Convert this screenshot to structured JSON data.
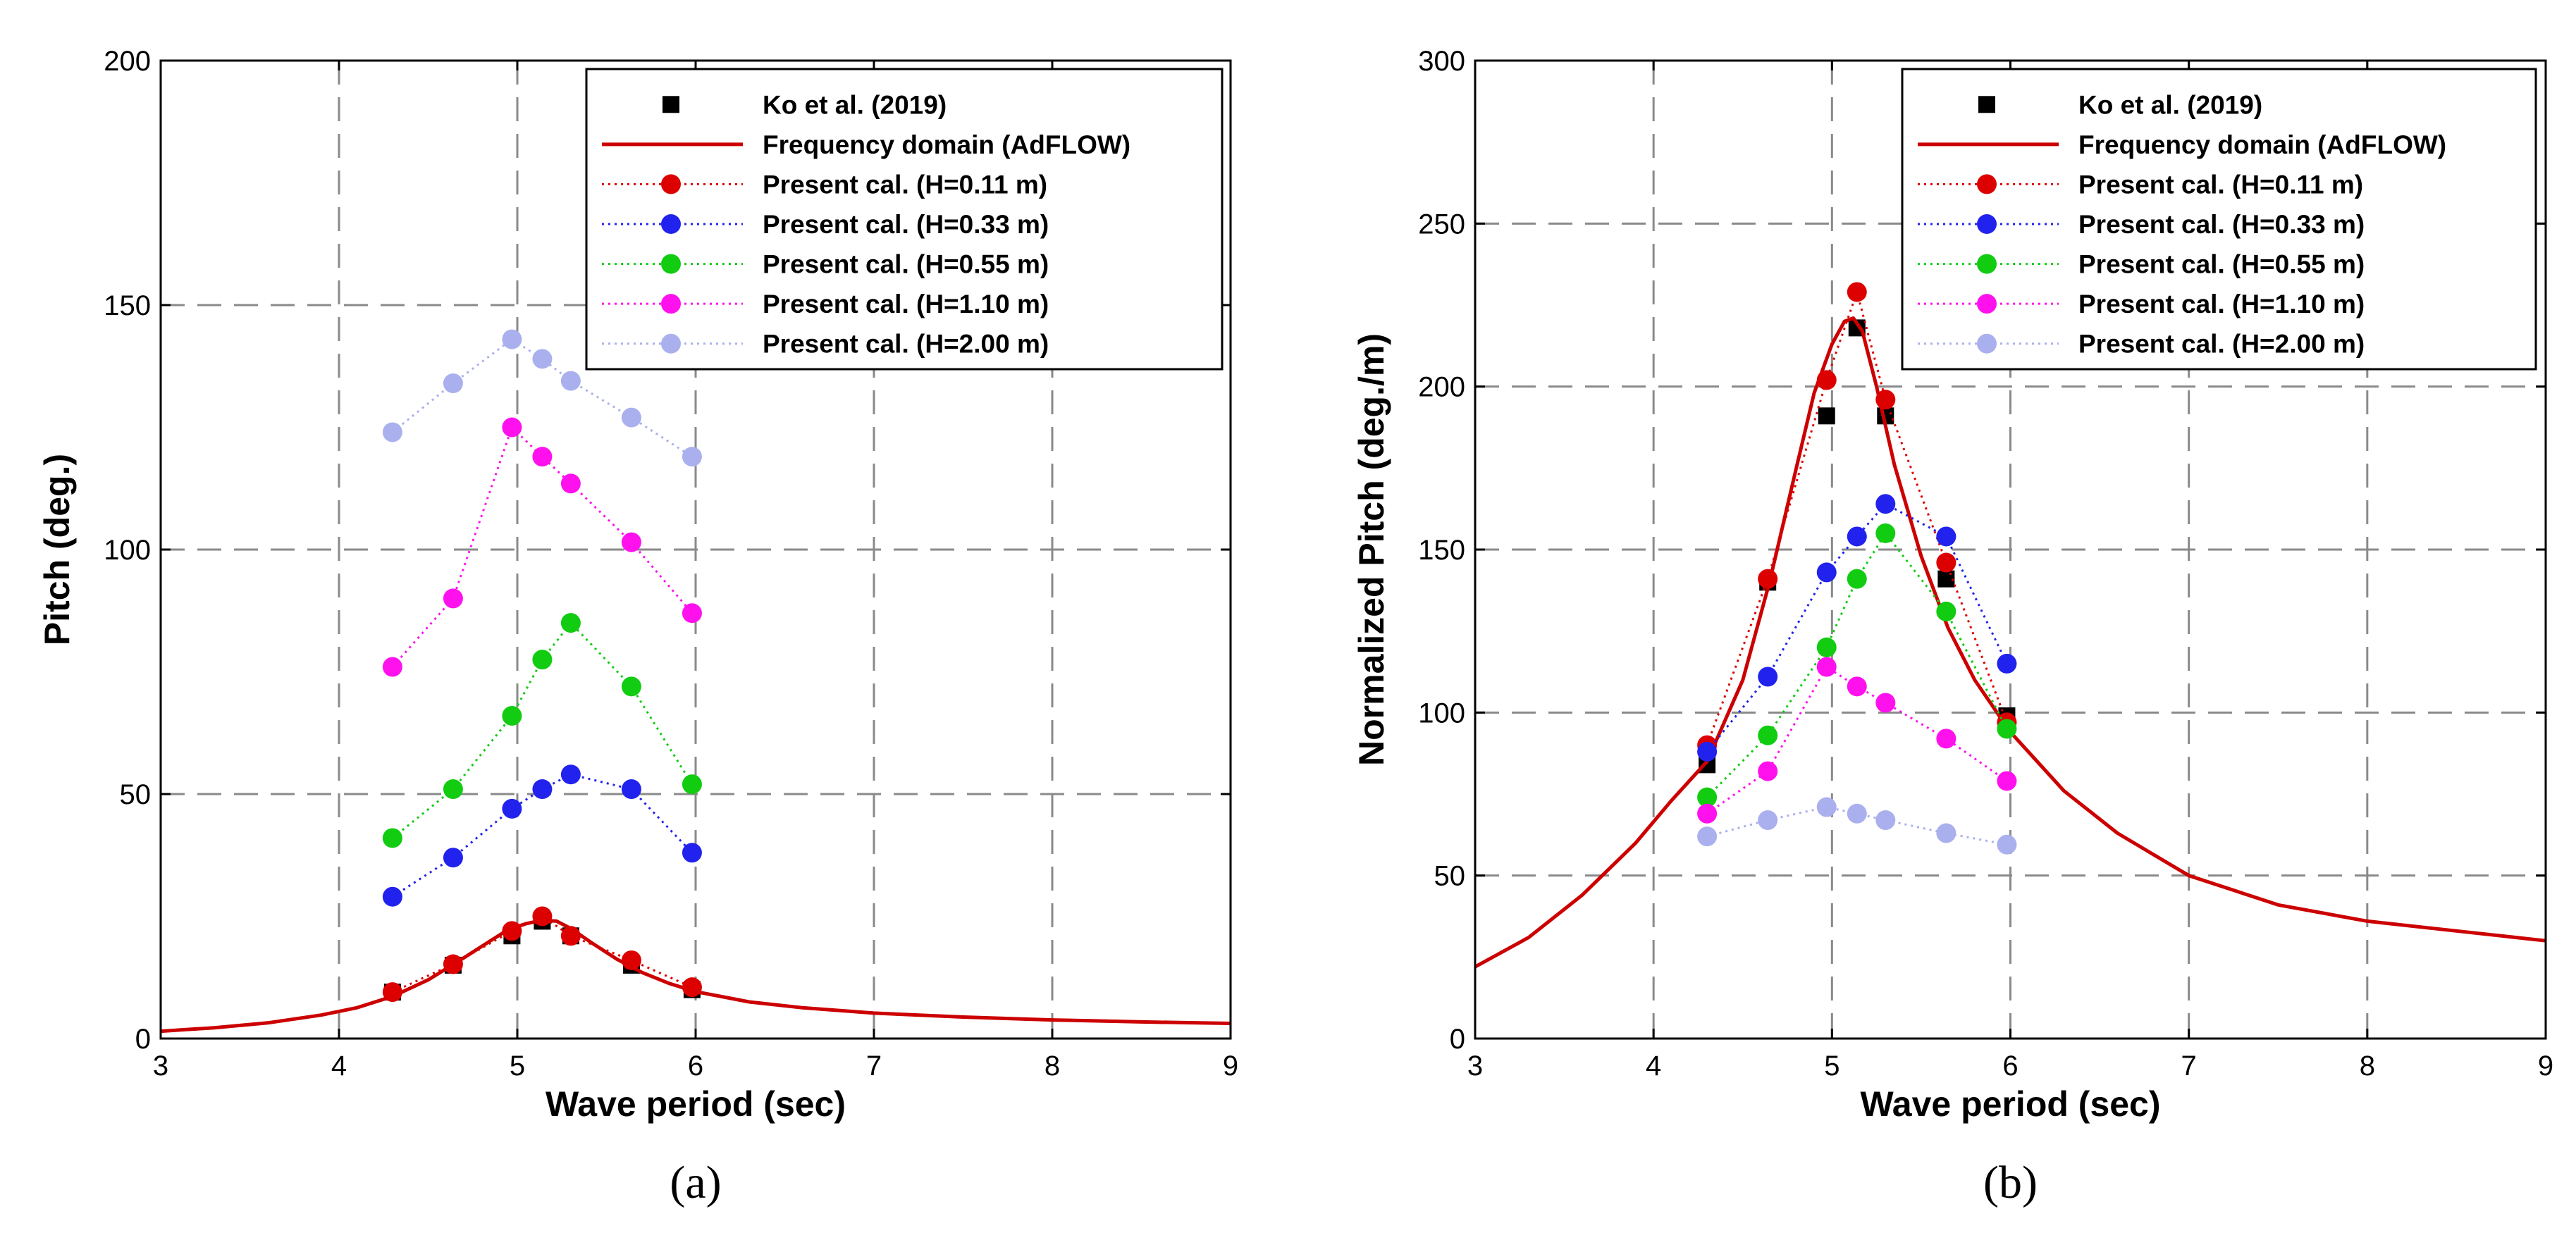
{
  "chart_data": [
    {
      "type": "line",
      "panel_label": "(a)",
      "xlabel": "Wave period (sec)",
      "ylabel": "Pitch (deg.)",
      "xlim": [
        3,
        9
      ],
      "ylim": [
        0,
        200
      ],
      "xticks": [
        3,
        4,
        5,
        6,
        7,
        8,
        9
      ],
      "yticks": [
        0,
        50,
        100,
        150,
        200
      ],
      "grid": true,
      "legend_position": "top-right",
      "series": [
        {
          "name": "Ko et al. (2019)",
          "kind": "marker-square",
          "color": "#000000",
          "x": [
            4.3,
            4.64,
            4.97,
            5.14,
            5.3,
            5.64,
            5.98
          ],
          "y": [
            9.5,
            15,
            21,
            24,
            21,
            15,
            10
          ]
        },
        {
          "name": "Frequency domain (AdFLOW)",
          "kind": "line",
          "color": "#cc0000",
          "x": [
            3,
            3.3,
            3.6,
            3.9,
            4.1,
            4.3,
            4.5,
            4.7,
            4.85,
            4.95,
            5.05,
            5.14,
            5.22,
            5.3,
            5.42,
            5.56,
            5.7,
            5.85,
            6.0,
            6.3,
            6.6,
            7.0,
            7.5,
            8.0,
            8.5,
            9.0
          ],
          "y": [
            1.5,
            2.2,
            3.2,
            4.8,
            6.3,
            8.6,
            12,
            16.5,
            20,
            22.3,
            23.5,
            24.2,
            24,
            22.5,
            19.5,
            16.2,
            13.5,
            11.3,
            9.6,
            7.5,
            6.3,
            5.2,
            4.4,
            3.8,
            3.4,
            3.1
          ]
        },
        {
          "name": "Present cal. (H=0.11 m)",
          "kind": "marker-dotted",
          "color": "#dd0000",
          "x": [
            4.3,
            4.64,
            4.97,
            5.14,
            5.3,
            5.64,
            5.98
          ],
          "y": [
            9.5,
            15.2,
            22,
            25,
            21,
            16,
            10.5
          ]
        },
        {
          "name": "Present cal. (H=0.33 m)",
          "kind": "marker-dotted",
          "color": "#2222ee",
          "x": [
            4.3,
            4.64,
            4.97,
            5.14,
            5.3,
            5.64,
            5.98
          ],
          "y": [
            29,
            37,
            47,
            51,
            54,
            51,
            38
          ]
        },
        {
          "name": "Present cal. (H=0.55 m)",
          "kind": "marker-dotted",
          "color": "#11cc11",
          "x": [
            4.3,
            4.64,
            4.97,
            5.14,
            5.3,
            5.64,
            5.98
          ],
          "y": [
            41,
            51,
            66,
            77.5,
            85,
            72,
            52
          ]
        },
        {
          "name": "Present cal. (H=1.10 m)",
          "kind": "marker-dotted",
          "color": "#ff11ee",
          "x": [
            4.3,
            4.64,
            4.97,
            5.14,
            5.3,
            5.64,
            5.98
          ],
          "y": [
            76,
            90,
            125,
            119,
            113.5,
            101.5,
            87
          ]
        },
        {
          "name": "Present cal. (H=2.00 m)",
          "kind": "marker-dotted",
          "color": "#aab0ee",
          "x": [
            4.3,
            4.64,
            4.97,
            5.14,
            5.3,
            5.64,
            5.98
          ],
          "y": [
            124,
            134,
            143,
            139,
            134.5,
            127,
            119
          ]
        }
      ]
    },
    {
      "type": "line",
      "panel_label": "(b)",
      "xlabel": "Wave period (sec)",
      "ylabel": "Normalized Pitch (deg./m)",
      "xlim": [
        3,
        9
      ],
      "ylim": [
        0,
        300
      ],
      "xticks": [
        3,
        4,
        5,
        6,
        7,
        8,
        9
      ],
      "yticks": [
        0,
        50,
        100,
        150,
        200,
        250,
        300
      ],
      "grid": true,
      "legend_position": "top-right",
      "series": [
        {
          "name": "Ko et al. (2019)",
          "kind": "marker-square",
          "color": "#000000",
          "x": [
            4.3,
            4.64,
            4.97,
            5.14,
            5.3,
            5.64,
            5.98
          ],
          "y": [
            84,
            140,
            191,
            218,
            191,
            141,
            99
          ]
        },
        {
          "name": "Frequency domain (AdFLOW)",
          "kind": "line",
          "color": "#cc0000",
          "x": [
            3,
            3.3,
            3.6,
            3.9,
            4.1,
            4.3,
            4.5,
            4.65,
            4.8,
            4.9,
            5.0,
            5.07,
            5.12,
            5.17,
            5.25,
            5.35,
            5.5,
            5.65,
            5.8,
            6.0,
            6.3,
            6.6,
            7.0,
            7.5,
            8.0,
            8.5,
            9.0
          ],
          "y": [
            22,
            31,
            44,
            60,
            73,
            85,
            110,
            140,
            175,
            198,
            213,
            220,
            221,
            217,
            200,
            176,
            148,
            126,
            110,
            94,
            76,
            63,
            50,
            41,
            36,
            33,
            30
          ]
        },
        {
          "name": "Present cal. (H=0.11 m)",
          "kind": "marker-dotted",
          "color": "#dd0000",
          "x": [
            4.3,
            4.64,
            4.97,
            5.14,
            5.3,
            5.64,
            5.98
          ],
          "y": [
            90,
            141,
            202,
            229,
            196,
            146,
            97
          ]
        },
        {
          "name": "Present cal. (H=0.33 m)",
          "kind": "marker-dotted",
          "color": "#2222ee",
          "x": [
            4.3,
            4.64,
            4.97,
            5.14,
            5.3,
            5.64,
            5.98
          ],
          "y": [
            88,
            111,
            143,
            154,
            164,
            154,
            115
          ]
        },
        {
          "name": "Present cal. (H=0.55 m)",
          "kind": "marker-dotted",
          "color": "#11cc11",
          "x": [
            4.3,
            4.64,
            4.97,
            5.14,
            5.3,
            5.64,
            5.98
          ],
          "y": [
            74,
            93,
            120,
            141,
            155,
            131,
            95
          ]
        },
        {
          "name": "Present cal. (H=1.10 m)",
          "kind": "marker-dotted",
          "color": "#ff11ee",
          "x": [
            4.3,
            4.64,
            4.97,
            5.14,
            5.3,
            5.64,
            5.98
          ],
          "y": [
            69,
            82,
            114,
            108,
            103,
            92,
            79
          ]
        },
        {
          "name": "Present cal. (H=2.00 m)",
          "kind": "marker-dotted",
          "color": "#aab0ee",
          "x": [
            4.3,
            4.64,
            4.97,
            5.14,
            5.3,
            5.64,
            5.98
          ],
          "y": [
            62,
            67,
            71,
            69,
            67,
            63,
            59.5
          ]
        }
      ]
    }
  ]
}
